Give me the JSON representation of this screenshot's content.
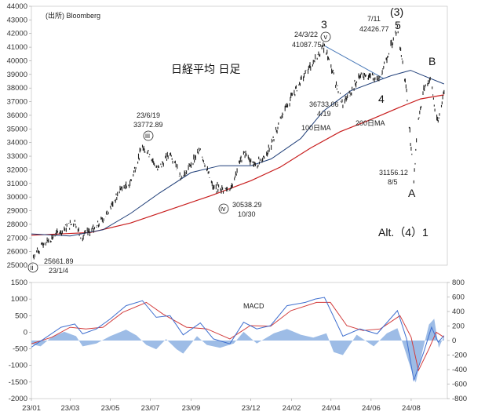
{
  "chart_data": [
    {
      "type": "line",
      "source": "(出所) Bloomberg",
      "title": "日経平均 日足",
      "ylim": [
        25000,
        44000
      ],
      "yticks": [
        25000,
        26000,
        27000,
        28000,
        29000,
        30000,
        31000,
        32000,
        33000,
        34000,
        35000,
        36000,
        37000,
        38000,
        39000,
        40000,
        41000,
        42000,
        43000,
        44000
      ],
      "price_path": [
        [
          "2023-01-04",
          25661
        ],
        [
          "2023-01-20",
          26600
        ],
        [
          "2023-02-15",
          27500
        ],
        [
          "2023-03-08",
          28200
        ],
        [
          "2023-03-17",
          27000
        ],
        [
          "2023-04-10",
          27800
        ],
        [
          "2023-04-28",
          28900
        ],
        [
          "2023-05-17",
          30600
        ],
        [
          "2023-05-31",
          31000
        ],
        [
          "2023-06-19",
          33772
        ],
        [
          "2023-06-30",
          33100
        ],
        [
          "2023-07-12",
          32000
        ],
        [
          "2023-07-31",
          33200
        ],
        [
          "2023-08-18",
          31400
        ],
        [
          "2023-09-15",
          33500
        ],
        [
          "2023-10-04",
          30700
        ],
        [
          "2023-10-30",
          30538
        ],
        [
          "2023-11-20",
          33300
        ],
        [
          "2023-12-08",
          32300
        ],
        [
          "2023-12-29",
          33460
        ],
        [
          "2024-01-22",
          36500
        ],
        [
          "2024-02-22",
          39100
        ],
        [
          "2024-03-22",
          41087
        ],
        [
          "2024-04-19",
          36733
        ],
        [
          "2024-05-15",
          38900
        ],
        [
          "2024-06-14",
          38800
        ],
        [
          "2024-07-11",
          42426
        ],
        [
          "2024-07-25",
          37800
        ],
        [
          "2024-08-05",
          31156
        ],
        [
          "2024-08-10",
          35000
        ],
        [
          "2024-08-20",
          38000
        ],
        [
          "2024-08-31",
          38700
        ],
        [
          "2024-09-06",
          36400
        ],
        [
          "2024-09-11",
          35600
        ],
        [
          "2024-09-20",
          37700
        ]
      ],
      "ma100_path": [
        [
          "2023-01-01",
          27300
        ],
        [
          "2023-03-01",
          27150
        ],
        [
          "2023-04-20",
          27600
        ],
        [
          "2023-06-01",
          28800
        ],
        [
          "2023-07-15",
          30300
        ],
        [
          "2023-09-01",
          31800
        ],
        [
          "2023-10-15",
          32300
        ],
        [
          "2023-12-01",
          32300
        ],
        [
          "2024-01-01",
          32800
        ],
        [
          "2024-02-15",
          34300
        ],
        [
          "2024-03-20",
          36300
        ],
        [
          "2024-05-01",
          37800
        ],
        [
          "2024-07-01",
          38900
        ],
        [
          "2024-07-31",
          39300
        ],
        [
          "2024-08-20",
          38900
        ],
        [
          "2024-09-20",
          38300
        ]
      ],
      "ma200_path": [
        [
          "2023-01-01",
          27200
        ],
        [
          "2023-04-01",
          27400
        ],
        [
          "2023-06-01",
          28100
        ],
        [
          "2023-08-01",
          29100
        ],
        [
          "2023-10-01",
          30100
        ],
        [
          "2023-12-01",
          31200
        ],
        [
          "2024-01-15",
          32200
        ],
        [
          "2024-03-01",
          33600
        ],
        [
          "2024-04-15",
          34800
        ],
        [
          "2024-06-01",
          35700
        ],
        [
          "2024-07-15",
          36600
        ],
        [
          "2024-08-15",
          37200
        ],
        [
          "2024-09-20",
          37500
        ]
      ],
      "trendline": [
        [
          "2024-03-22",
          41100
        ],
        [
          "2024-06-20",
          38700
        ]
      ],
      "labels": {
        "ma100": "100日MA",
        "ma200": "200日MA",
        "wave_3": "3",
        "wave_p3": "(3)",
        "wave_5": "5",
        "wave_4": "4",
        "wave_B": "B",
        "wave_A": "A",
        "wave_v": "v",
        "wave_iii": "iii",
        "wave_iv": "iv",
        "wave_ii": "ii",
        "alt": "Alt.（4）1",
        "ann_0322": "24/3/22\n41087.75",
        "ann_0711": "7/11\n42426.77",
        "ann_0419": "36733.06\n4/19",
        "ann_0619": "23/6/19\n33772.89",
        "ann_1030": "30538.29\n10/30",
        "ann_0805": "31156.12\n8/5",
        "ann_0104": "25661.89\n23/1/4"
      }
    },
    {
      "type": "line+area",
      "title": "MACD",
      "ylim_left": [
        -2000,
        1500
      ],
      "yticks_left": [
        -2000,
        -1500,
        -1000,
        -500,
        0,
        500,
        1000,
        1500
      ],
      "ylim_right": [
        -800,
        800
      ],
      "yticks_right": [
        -800,
        -600,
        -400,
        -200,
        0,
        200,
        400,
        600,
        800
      ],
      "xtick_labels": [
        "23/01",
        "23/03",
        "23/05",
        "23/07",
        "23/09",
        "23/12",
        "24/02",
        "24/04",
        "24/06",
        "24/08"
      ],
      "xtick_dates": [
        "2023-01-01",
        "2023-03-01",
        "2023-05-01",
        "2023-07-01",
        "2023-09-01",
        "2023-12-01",
        "2024-02-01",
        "2024-04-01",
        "2024-06-01",
        "2024-08-01"
      ],
      "macd_path": [
        [
          "2023-01-01",
          -450
        ],
        [
          "2023-01-20",
          -200
        ],
        [
          "2023-02-15",
          150
        ],
        [
          "2023-03-08",
          250
        ],
        [
          "2023-03-20",
          -50
        ],
        [
          "2023-04-10",
          100
        ],
        [
          "2023-05-01",
          400
        ],
        [
          "2023-05-25",
          800
        ],
        [
          "2023-06-19",
          950
        ],
        [
          "2023-07-10",
          450
        ],
        [
          "2023-07-31",
          500
        ],
        [
          "2023-08-20",
          -80
        ],
        [
          "2023-09-15",
          280
        ],
        [
          "2023-10-05",
          -200
        ],
        [
          "2023-10-30",
          -350
        ],
        [
          "2023-11-20",
          300
        ],
        [
          "2023-12-10",
          100
        ],
        [
          "2023-12-31",
          200
        ],
        [
          "2024-01-25",
          800
        ],
        [
          "2024-02-22",
          900
        ],
        [
          "2024-03-08",
          1000
        ],
        [
          "2024-03-22",
          1050
        ],
        [
          "2024-04-19",
          -120
        ],
        [
          "2024-05-15",
          100
        ],
        [
          "2024-06-10",
          -50
        ],
        [
          "2024-07-11",
          650
        ],
        [
          "2024-07-25",
          -200
        ],
        [
          "2024-08-05",
          -1450
        ],
        [
          "2024-08-20",
          -600
        ],
        [
          "2024-09-01",
          150
        ],
        [
          "2024-09-11",
          -300
        ],
        [
          "2024-09-20",
          -100
        ]
      ],
      "signal_path": [
        [
          "2023-01-01",
          -350
        ],
        [
          "2023-02-01",
          -150
        ],
        [
          "2023-03-01",
          150
        ],
        [
          "2023-03-25",
          100
        ],
        [
          "2023-04-20",
          150
        ],
        [
          "2023-05-20",
          600
        ],
        [
          "2023-06-25",
          900
        ],
        [
          "2023-07-20",
          550
        ],
        [
          "2023-08-25",
          150
        ],
        [
          "2023-09-25",
          100
        ],
        [
          "2023-10-30",
          -200
        ],
        [
          "2023-11-30",
          200
        ],
        [
          "2023-12-31",
          180
        ],
        [
          "2024-01-31",
          650
        ],
        [
          "2024-03-10",
          900
        ],
        [
          "2024-03-31",
          900
        ],
        [
          "2024-04-25",
          200
        ],
        [
          "2024-05-20",
          50
        ],
        [
          "2024-06-15",
          100
        ],
        [
          "2024-07-15",
          500
        ],
        [
          "2024-08-01",
          -150
        ],
        [
          "2024-08-12",
          -1150
        ],
        [
          "2024-08-28",
          -500
        ],
        [
          "2024-09-08",
          0
        ],
        [
          "2024-09-20",
          -150
        ]
      ],
      "hist_path": [
        [
          "2023-01-01",
          -50
        ],
        [
          "2023-01-15",
          -80
        ],
        [
          "2023-02-01",
          50
        ],
        [
          "2023-02-20",
          120
        ],
        [
          "2023-03-10",
          60
        ],
        [
          "2023-03-20",
          -80
        ],
        [
          "2023-04-10",
          -40
        ],
        [
          "2023-05-01",
          60
        ],
        [
          "2023-05-25",
          150
        ],
        [
          "2023-06-10",
          70
        ],
        [
          "2023-06-25",
          -60
        ],
        [
          "2023-07-10",
          -120
        ],
        [
          "2023-07-25",
          20
        ],
        [
          "2023-08-10",
          -120
        ],
        [
          "2023-08-20",
          -180
        ],
        [
          "2023-09-10",
          60
        ],
        [
          "2023-09-25",
          -60
        ],
        [
          "2023-10-15",
          -100
        ],
        [
          "2023-11-05",
          -40
        ],
        [
          "2023-11-20",
          120
        ],
        [
          "2023-12-10",
          -40
        ],
        [
          "2024-01-05",
          100
        ],
        [
          "2024-01-25",
          160
        ],
        [
          "2024-02-15",
          80
        ],
        [
          "2024-03-05",
          40
        ],
        [
          "2024-03-25",
          100
        ],
        [
          "2024-04-05",
          -160
        ],
        [
          "2024-04-19",
          -200
        ],
        [
          "2024-05-10",
          80
        ],
        [
          "2024-06-05",
          -80
        ],
        [
          "2024-06-25",
          100
        ],
        [
          "2024-07-11",
          170
        ],
        [
          "2024-07-20",
          -60
        ],
        [
          "2024-08-01",
          -400
        ],
        [
          "2024-08-08",
          -580
        ],
        [
          "2024-08-18",
          -150
        ],
        [
          "2024-08-28",
          220
        ],
        [
          "2024-09-05",
          300
        ],
        [
          "2024-09-12",
          -100
        ],
        [
          "2024-09-20",
          60
        ]
      ]
    }
  ],
  "colors": {
    "price": "#222222",
    "ma100": "#1f3e78",
    "ma200": "#c81e1e",
    "trend": "#4a7ab8",
    "macd": "#3f6fcf",
    "signal": "#d23c3c",
    "hist": "#9dbce6"
  }
}
